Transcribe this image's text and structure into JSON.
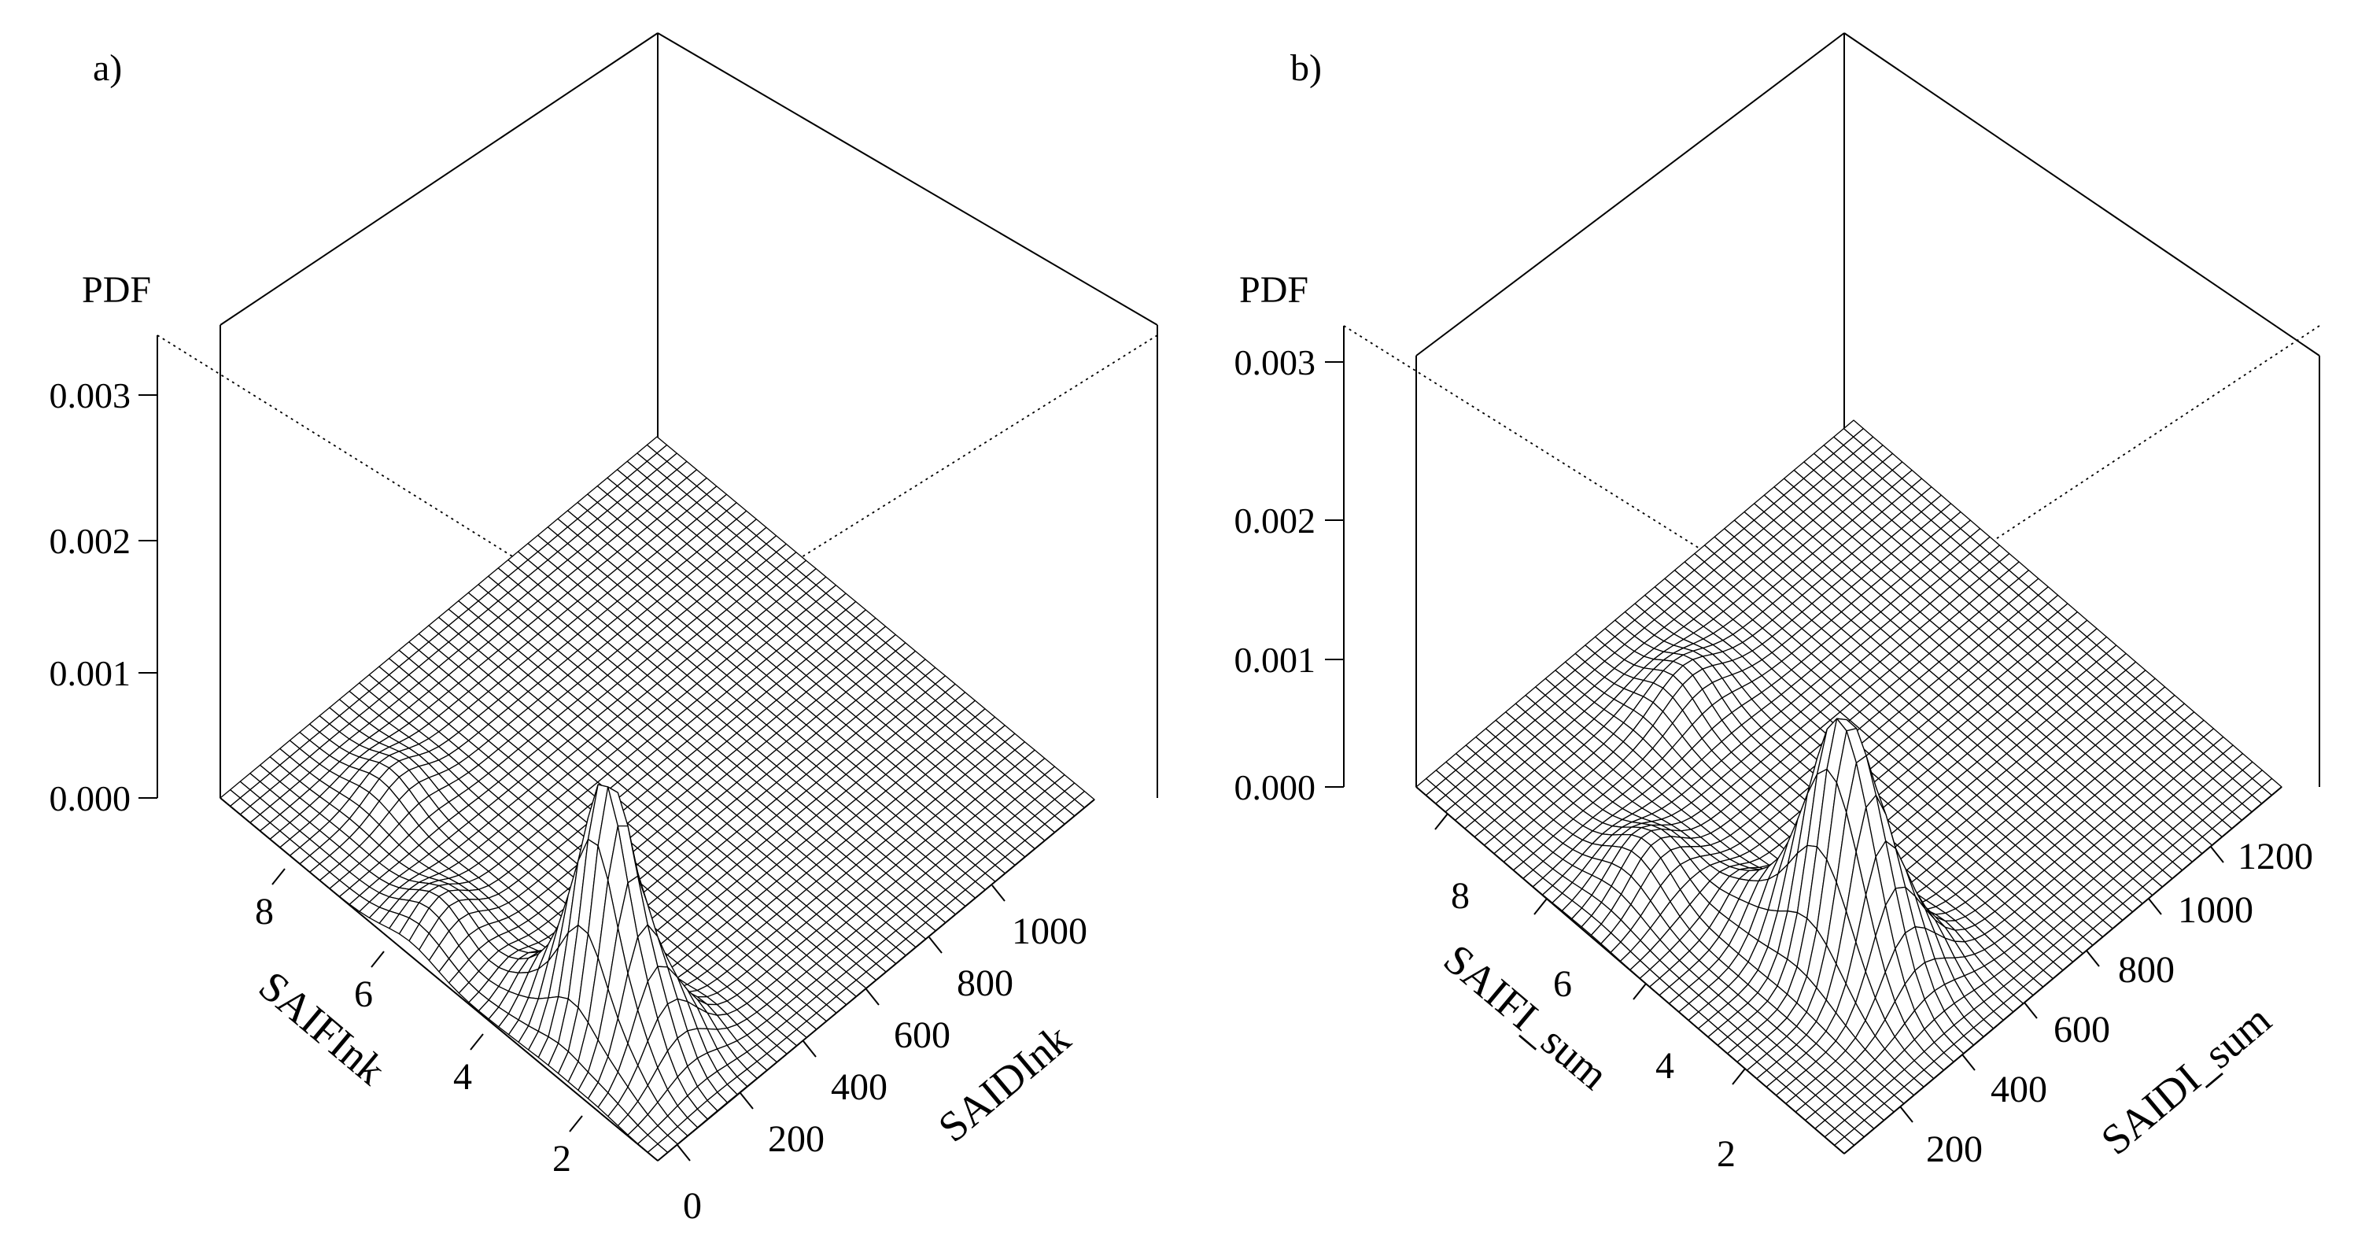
{
  "chart_data": [
    {
      "type": "surface",
      "panel_label": "a)",
      "zlabel": "PDF",
      "xlabel": "SAIFInk",
      "ylabel": "SAIDInk",
      "zlim": [
        0,
        0.0035
      ],
      "xlim": [
        1,
        9.5
      ],
      "ylim": [
        0,
        1150
      ],
      "z_ticks": [
        "0.000",
        "0.001",
        "0.002",
        "0.003"
      ],
      "x_ticks": [
        "2",
        "4",
        "6",
        "8"
      ],
      "y_ticks": [
        "0",
        "200",
        "400",
        "600",
        "800",
        "1000"
      ],
      "peaks": [
        {
          "x": 3.0,
          "y": 140,
          "height": 0.00205,
          "sx": 0.42,
          "sy": 48
        },
        {
          "x": 2.2,
          "y": 170,
          "height": 0.0006,
          "sx": 0.4,
          "sy": 70
        },
        {
          "x": 5.8,
          "y": 80,
          "height": 0.0003,
          "sx": 0.5,
          "sy": 60
        },
        {
          "x": 7.9,
          "y": 240,
          "height": 0.0002,
          "sx": 0.45,
          "sy": 60
        },
        {
          "x": 3.7,
          "y": 110,
          "height": 0.0004,
          "sx": 0.6,
          "sy": 45
        }
      ]
    },
    {
      "type": "surface",
      "panel_label": "b)",
      "zlabel": "PDF",
      "xlabel": "SAIFI_sum",
      "ylabel": "SAIDI_sum",
      "zlim": [
        0,
        0.0035
      ],
      "xlim": [
        1.5,
        10
      ],
      "ylim": [
        0,
        1400
      ],
      "z_ticks": [
        "0.000",
        "0.001",
        "0.002",
        "0.003"
      ],
      "x_ticks": [
        "2",
        "4",
        "6",
        "8"
      ],
      "y_ticks": [
        "200",
        "400",
        "600",
        "800",
        "1000",
        "1200"
      ],
      "peaks": [
        {
          "x": 3.8,
          "y": 360,
          "height": 0.00195,
          "sx": 0.55,
          "sy": 65
        },
        {
          "x": 3.0,
          "y": 420,
          "height": 0.00055,
          "sx": 0.45,
          "sy": 90
        },
        {
          "x": 6.6,
          "y": 200,
          "height": 0.00035,
          "sx": 0.55,
          "sy": 80
        },
        {
          "x": 8.4,
          "y": 600,
          "height": 0.00025,
          "sx": 0.45,
          "sy": 90
        },
        {
          "x": 5.0,
          "y": 300,
          "height": 0.0003,
          "sx": 0.6,
          "sy": 60
        }
      ]
    }
  ]
}
